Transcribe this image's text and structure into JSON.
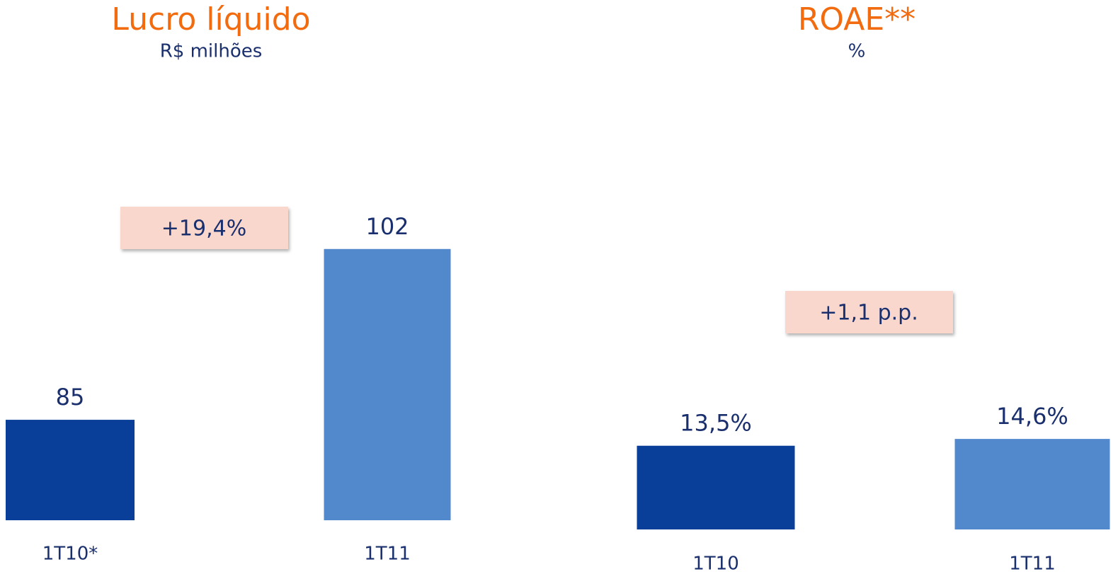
{
  "chart_data": [
    {
      "type": "bar",
      "title": "Lucro líquido",
      "subtitle": "R$ milhões",
      "categories": [
        "1T10*",
        "1T11"
      ],
      "values": [
        85,
        102
      ],
      "colors": [
        "#0a3f99",
        "#5189cc"
      ],
      "ylim": [
        75,
        106
      ],
      "annotation": "+19,4%"
    },
    {
      "type": "bar",
      "title": "ROAE**",
      "subtitle": "%",
      "categories": [
        "1T10",
        "1T11"
      ],
      "values": [
        13.5,
        14.6
      ],
      "value_labels": [
        "13,5%",
        "14,6%"
      ],
      "colors": [
        "#0a3f99",
        "#5189cc"
      ],
      "ylim": [
        0,
        50
      ],
      "annotation": "+1,1 p.p."
    }
  ]
}
